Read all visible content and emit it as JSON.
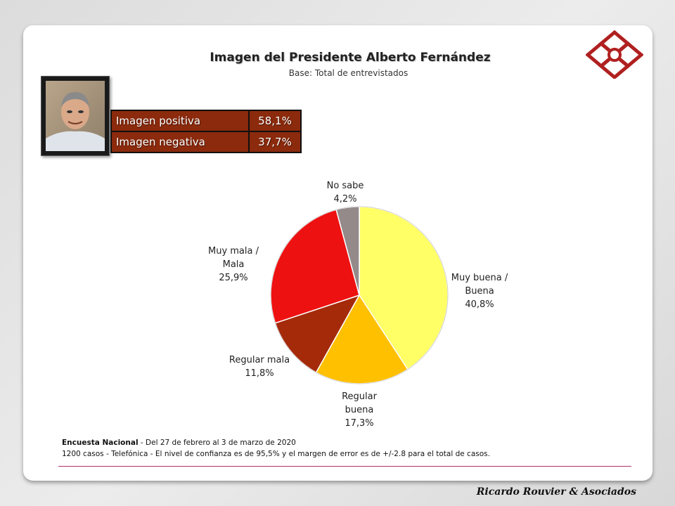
{
  "chart_data": {
    "type": "pie",
    "title": "Imagen del Presidente Alberto Fernández",
    "subtitle": "Base: Total de entrevistados",
    "slices": [
      {
        "label": [
          "Muy buena /",
          "Buena"
        ],
        "value": 40.8,
        "value_label": "40,8%",
        "color": "#ffff66"
      },
      {
        "label": [
          "Regular",
          "buena"
        ],
        "value": 17.3,
        "value_label": "17,3%",
        "color": "#ffc000"
      },
      {
        "label": [
          "Regular mala"
        ],
        "value": 11.8,
        "value_label": "11,8%",
        "color": "#a52a0a"
      },
      {
        "label": [
          "Muy mala /",
          "Mala"
        ],
        "value": 25.9,
        "value_label": "25,9%",
        "color": "#ee1111"
      },
      {
        "label": [
          "No sabe"
        ],
        "value": 4.2,
        "value_label": "4,2%",
        "color": "#948a8a"
      }
    ],
    "summary": [
      {
        "label": "Imagen positiva",
        "value": "58,1%"
      },
      {
        "label": "Imagen negativa",
        "value": "37,7%"
      }
    ]
  },
  "footnote": {
    "line1_bold": "Encuesta Nacional",
    "line1_rest": " - Del 27 de febrero  al  3 de marzo de 2020",
    "line2": "1200 casos - Telefónica   - El nivel  de confianza  es de 95,5% y el margen de error es de +/-2.8 para el total  de casos."
  },
  "brand": "Ricardo Rouvier & Asociados",
  "colors": {
    "table_bg": "#8b2a0c",
    "logo": "#b02020",
    "divider": "#b0306a"
  },
  "icons": {
    "logo": "diamond-grid-logo",
    "photo": "portrait-photo"
  }
}
